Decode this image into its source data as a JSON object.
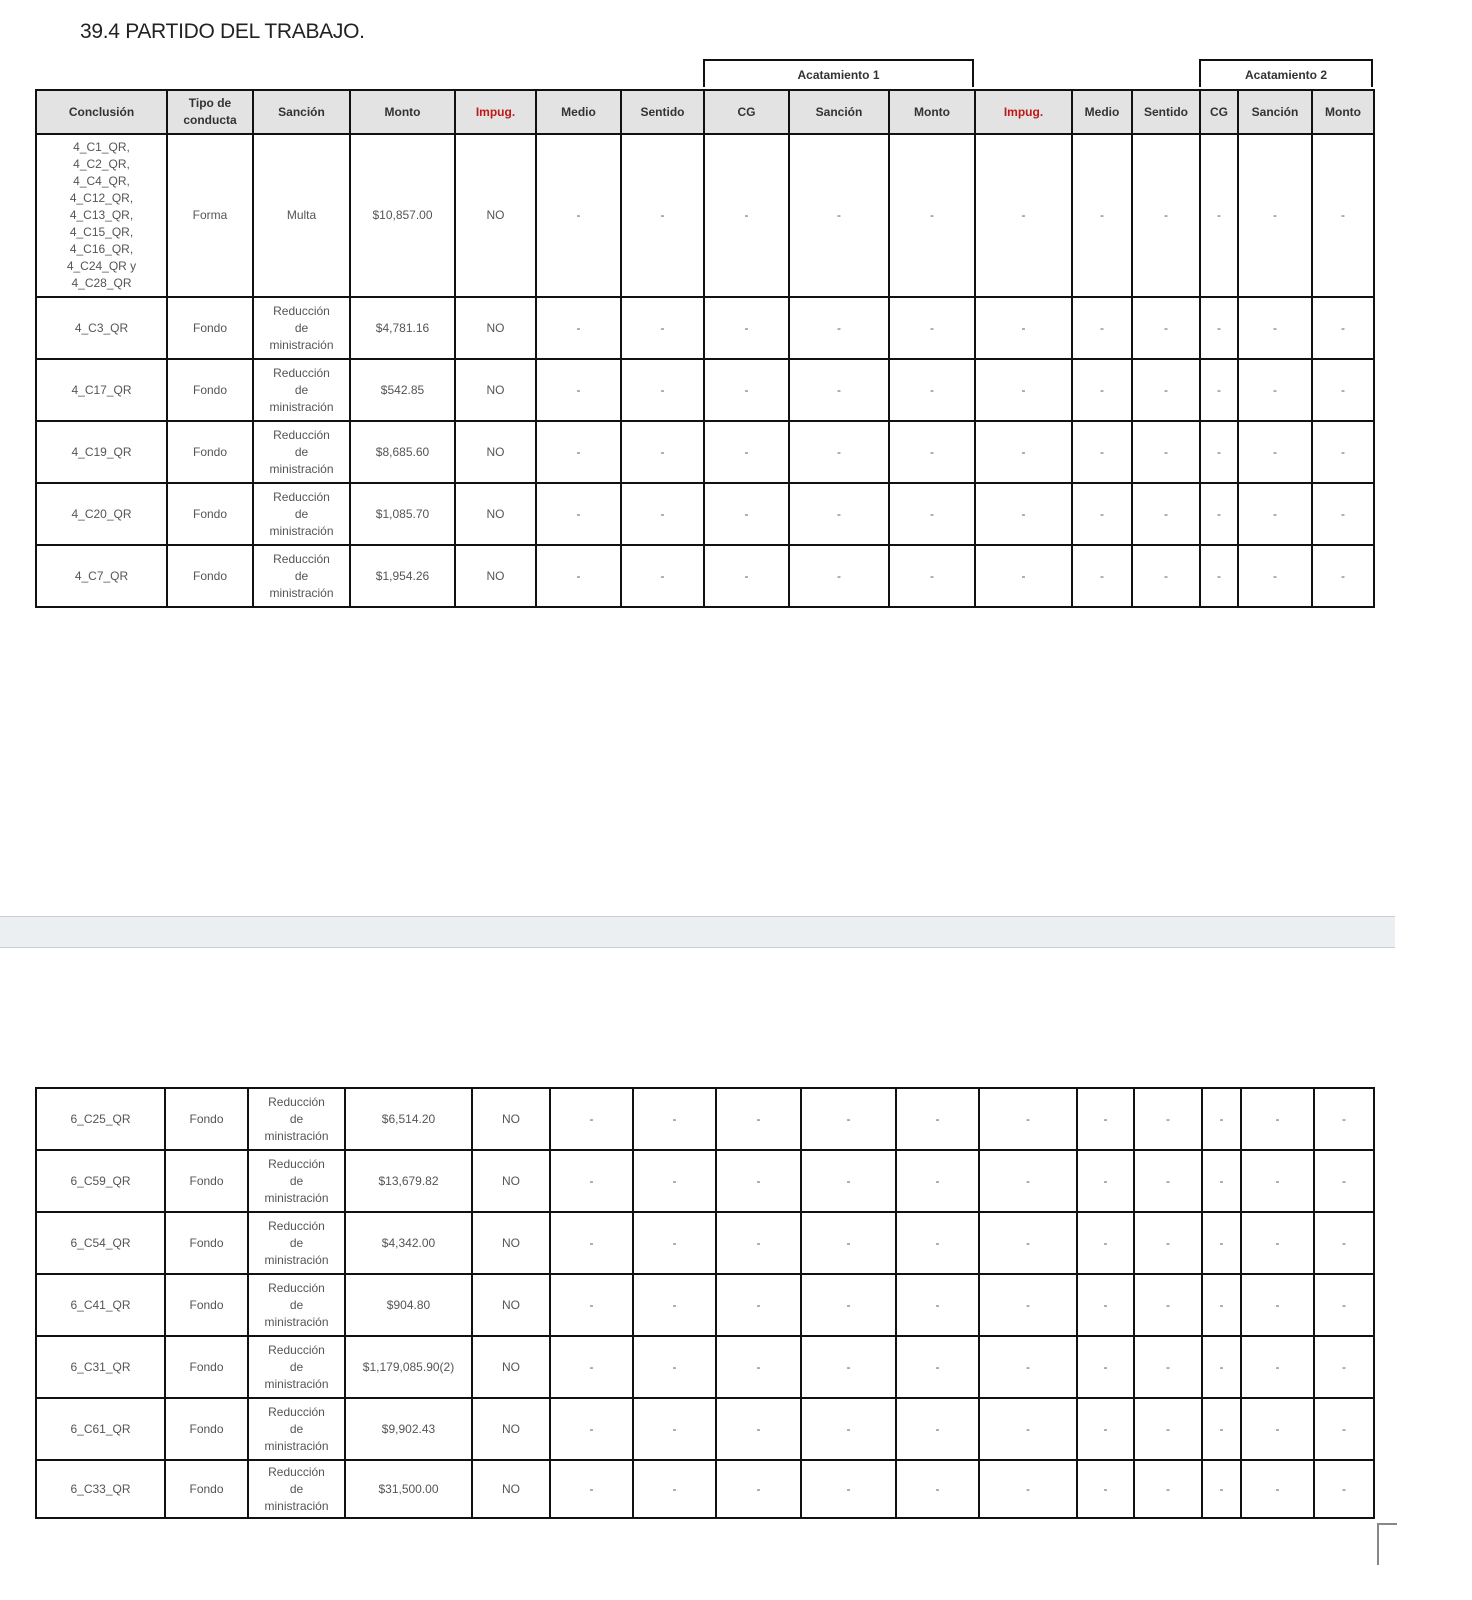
{
  "title": "39.4 PARTIDO DEL TRABAJO.",
  "groups": {
    "acatamiento1": "Acatamiento 1",
    "acatamiento2": "Acatamiento 2"
  },
  "headers": [
    "Conclusión",
    "Tipo de conducta",
    "Sanción",
    "Monto",
    "Impug.",
    "Medio",
    "Sentido",
    "CG",
    "Sanción",
    "Monto",
    "Impug.",
    "Medio",
    "Sentido",
    "CG",
    "Sanción",
    "Monto"
  ],
  "accent_color": "#c01818",
  "table1_rows": [
    {
      "conclusion": "4_C1_QR, 4_C2_QR, 4_C4_QR, 4_C12_QR, 4_C13_QR, 4_C15_QR, 4_C16_QR, 4_C24_QR y 4_C28_QR",
      "tipo": "Forma",
      "sancion": "Multa",
      "monto": "$10,857.00",
      "impug": "NO"
    },
    {
      "conclusion": "4_C3_QR",
      "tipo": "Fondo",
      "sancion": "Reducción de ministración",
      "monto": "$4,781.16",
      "impug": "NO"
    },
    {
      "conclusion": "4_C17_QR",
      "tipo": "Fondo",
      "sancion": "Reducción de ministración",
      "monto": "$542.85",
      "impug": "NO"
    },
    {
      "conclusion": "4_C19_QR",
      "tipo": "Fondo",
      "sancion": "Reducción de ministración",
      "monto": "$8,685.60",
      "impug": "NO"
    },
    {
      "conclusion": "4_C20_QR",
      "tipo": "Fondo",
      "sancion": "Reducción de ministración",
      "monto": "$1,085.70",
      "impug": "NO"
    },
    {
      "conclusion": "4_C7_QR",
      "tipo": "Fondo",
      "sancion": "Reducción de ministración",
      "monto": "$1,954.26",
      "impug": "NO"
    }
  ],
  "table2_rows": [
    {
      "conclusion": "6_C25_QR",
      "tipo": "Fondo",
      "sancion": "Reducción de ministración",
      "monto": "$6,514.20",
      "impug": "NO"
    },
    {
      "conclusion": "6_C59_QR",
      "tipo": "Fondo",
      "sancion": "Reducción de ministración",
      "monto": "$13,679.82",
      "impug": "NO"
    },
    {
      "conclusion": "6_C54_QR",
      "tipo": "Fondo",
      "sancion": "Reducción de ministración",
      "monto": "$4,342.00",
      "impug": "NO"
    },
    {
      "conclusion": "6_C41_QR",
      "tipo": "Fondo",
      "sancion": "Reducción de ministración",
      "monto": "$904.80",
      "impug": "NO"
    },
    {
      "conclusion": "6_C31_QR",
      "tipo": "Fondo",
      "sancion": "Reducción de ministración",
      "monto": "$1,179,085.90(2)",
      "impug": "NO"
    },
    {
      "conclusion": "6_C61_QR",
      "tipo": "Fondo",
      "sancion": "Reducción de ministración",
      "monto": "$9,902.43",
      "impug": "NO"
    },
    {
      "conclusion": "6_C33_QR",
      "tipo": "Fondo",
      "sancion": "Reducción de ministración",
      "monto": "$31,500.00",
      "impug": "NO"
    }
  ],
  "empty_value": "-"
}
